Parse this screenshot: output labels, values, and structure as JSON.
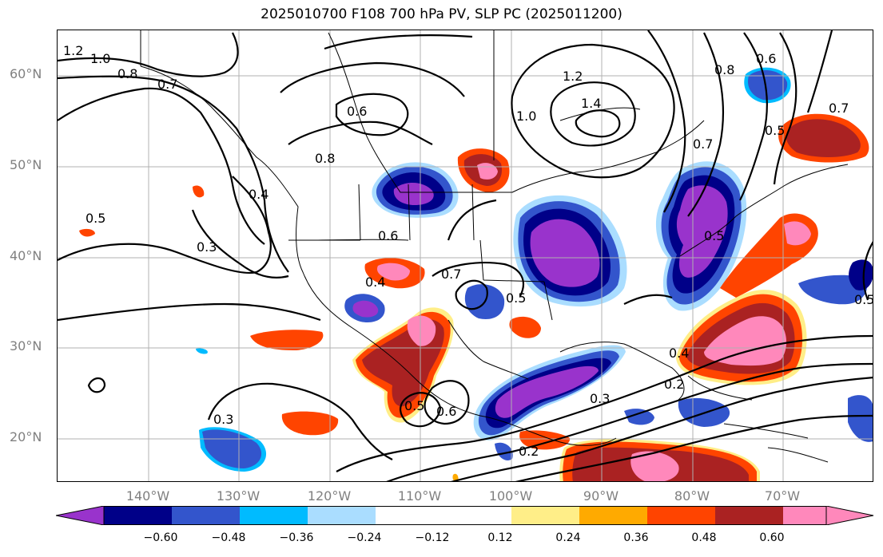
{
  "title": "2025010700 F108 700 hPa PV, SLP PC (2025011200)",
  "map": {
    "lat_labels": [
      "60°N",
      "50°N",
      "40°N",
      "30°N",
      "20°N"
    ],
    "lon_labels": [
      "140°W",
      "130°W",
      "120°W",
      "110°W",
      "100°W",
      "90°W",
      "80°W",
      "70°W"
    ],
    "contour_labels": [
      "1.2",
      "1.0",
      "0.8",
      "0.7",
      "0.6",
      "0.8",
      "0.5",
      "0.4",
      "0.3",
      "1.2",
      "1.4",
      "1.0",
      "0.8",
      "0.6",
      "0.7",
      "0.5",
      "0.6",
      "0.7",
      "0.5",
      "0.4",
      "0.6",
      "0.5",
      "0.3",
      "0.2",
      "0.3",
      "0.2",
      "0.4",
      "0.5",
      "0.7",
      "0.5"
    ]
  },
  "colorbar": {
    "colors": [
      "#9933cc",
      "#000088",
      "#3355cc",
      "#00bbff",
      "#aaddff",
      "#ffffff",
      "#ffee88",
      "#ffaa00",
      "#ff4400",
      "#aa2222",
      "#ff88bb"
    ],
    "ticks": [
      "−0.60",
      "−0.48",
      "−0.36",
      "−0.24",
      "−0.12",
      "0.12",
      "0.24",
      "0.36",
      "0.48",
      "0.60"
    ]
  }
}
